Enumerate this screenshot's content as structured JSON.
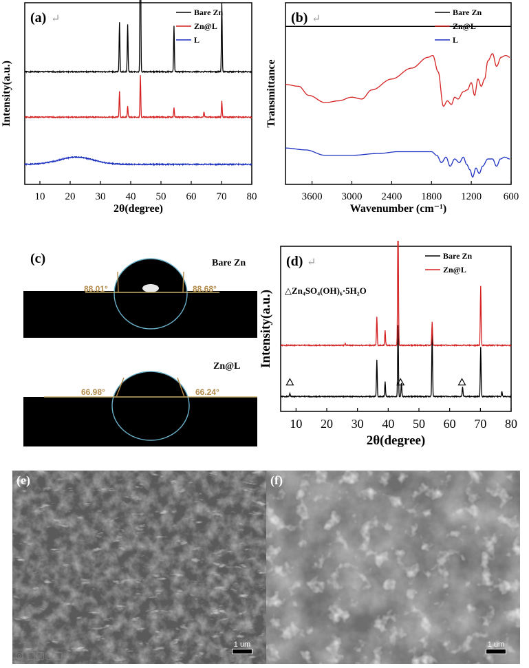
{
  "chart_data": [
    {
      "id": "a",
      "panel_label": "(a)",
      "type": "line",
      "xlabel": "2θ(degree)",
      "ylabel": "Intensity(a.u.)",
      "xlim": [
        5,
        80
      ],
      "xticks": [
        10,
        20,
        30,
        40,
        50,
        60,
        70,
        80
      ],
      "series": [
        {
          "name": "Bare Zn",
          "color": "#000000",
          "baseline": 0.62,
          "peaks": [
            [
              36.3,
              0.27
            ],
            [
              39.0,
              0.26
            ],
            [
              43.2,
              0.97
            ],
            [
              54.3,
              0.25
            ],
            [
              70.1,
              0.38
            ]
          ]
        },
        {
          "name": "Zn@L",
          "color": "#d42020",
          "baseline": 0.37,
          "peaks": [
            [
              36.3,
              0.14
            ],
            [
              39.0,
              0.06
            ],
            [
              43.2,
              0.23
            ],
            [
              54.3,
              0.05
            ],
            [
              64.2,
              0.03
            ],
            [
              70.1,
              0.09
            ]
          ]
        },
        {
          "name": "L",
          "color": "#1a2fbf",
          "baseline": 0.11,
          "hump": [
            22,
            0.04
          ]
        }
      ]
    },
    {
      "id": "b",
      "panel_label": "(b)",
      "type": "line",
      "xlabel": "Wavenumber (cm⁻¹)",
      "ylabel": "Transmittance",
      "xlim": [
        4000,
        600
      ],
      "xticks": [
        3600,
        3000,
        2400,
        1800,
        1200,
        600
      ],
      "series": [
        {
          "name": "Bare Zn",
          "color": "#000000",
          "points": [
            [
              4000,
              0.87
            ],
            [
              3000,
              0.87
            ],
            [
              2000,
              0.87
            ],
            [
              600,
              0.87
            ]
          ]
        },
        {
          "name": "Zn@L",
          "color": "#d42020",
          "points": [
            [
              4000,
              0.55
            ],
            [
              3800,
              0.54
            ],
            [
              3650,
              0.49
            ],
            [
              3400,
              0.45
            ],
            [
              3200,
              0.46
            ],
            [
              3000,
              0.48
            ],
            [
              2850,
              0.47
            ],
            [
              2700,
              0.52
            ],
            [
              2400,
              0.58
            ],
            [
              2100,
              0.64
            ],
            [
              1850,
              0.7
            ],
            [
              1780,
              0.71
            ],
            [
              1700,
              0.62
            ],
            [
              1620,
              0.43
            ],
            [
              1560,
              0.46
            ],
            [
              1500,
              0.44
            ],
            [
              1450,
              0.48
            ],
            [
              1400,
              0.47
            ],
            [
              1320,
              0.51
            ],
            [
              1260,
              0.52
            ],
            [
              1200,
              0.56
            ],
            [
              1150,
              0.49
            ],
            [
              1100,
              0.58
            ],
            [
              1050,
              0.54
            ],
            [
              1000,
              0.58
            ],
            [
              950,
              0.68
            ],
            [
              880,
              0.72
            ],
            [
              820,
              0.65
            ],
            [
              750,
              0.7
            ],
            [
              680,
              0.71
            ],
            [
              620,
              0.7
            ]
          ]
        },
        {
          "name": "L",
          "color": "#1a2fbf",
          "points": [
            [
              4000,
              0.2
            ],
            [
              3700,
              0.19
            ],
            [
              3400,
              0.16
            ],
            [
              3000,
              0.16
            ],
            [
              2600,
              0.17
            ],
            [
              2300,
              0.18
            ],
            [
              2000,
              0.18
            ],
            [
              1800,
              0.18
            ],
            [
              1720,
              0.16
            ],
            [
              1650,
              0.12
            ],
            [
              1580,
              0.15
            ],
            [
              1520,
              0.1
            ],
            [
              1450,
              0.14
            ],
            [
              1380,
              0.12
            ],
            [
              1320,
              0.15
            ],
            [
              1270,
              0.11
            ],
            [
              1220,
              0.08
            ],
            [
              1180,
              0.04
            ],
            [
              1130,
              0.09
            ],
            [
              1080,
              0.06
            ],
            [
              1030,
              0.1
            ],
            [
              950,
              0.14
            ],
            [
              880,
              0.14
            ],
            [
              820,
              0.1
            ],
            [
              760,
              0.14
            ],
            [
              700,
              0.15
            ],
            [
              620,
              0.14
            ]
          ]
        }
      ]
    },
    {
      "id": "d",
      "panel_label": "(d)",
      "type": "line",
      "xlabel": "2θ(degree)",
      "ylabel": "Intensity(a.u.)",
      "xlim": [
        5,
        80
      ],
      "xticks": [
        10,
        20,
        30,
        40,
        50,
        60,
        70,
        80
      ],
      "annotation": "△Zn₄SO₄(OH)₆·5H₂O",
      "marker_positions": [
        8,
        44,
        64
      ],
      "series": [
        {
          "name": "Bare Zn",
          "color": "#000000",
          "baseline": 0.09,
          "peaks": [
            [
              8,
              0.02
            ],
            [
              36.3,
              0.22
            ],
            [
              39.0,
              0.09
            ],
            [
              43.2,
              0.43
            ],
            [
              44.3,
              0.08
            ],
            [
              54.3,
              0.38
            ],
            [
              64.2,
              0.06
            ],
            [
              70.1,
              0.3
            ],
            [
              77.0,
              0.03
            ]
          ]
        },
        {
          "name": "Zn@L",
          "color": "#d42020",
          "baseline": 0.4,
          "peaks": [
            [
              26,
              0.01
            ],
            [
              36.3,
              0.17
            ],
            [
              39.0,
              0.09
            ],
            [
              43.2,
              0.8
            ],
            [
              54.3,
              0.14
            ],
            [
              70.1,
              0.36
            ]
          ]
        }
      ]
    }
  ],
  "contact_angle": {
    "panel_label": "(c)",
    "bare": {
      "name": "Bare Zn",
      "left": "88.01°",
      "right": "88.68°"
    },
    "coated": {
      "name": "Zn@L",
      "left": "66.98°",
      "right": "66.24°"
    }
  },
  "sem": {
    "e": {
      "label": "(e)",
      "scale": "1 um"
    },
    "f": {
      "label": "(f)",
      "scale": "1 um"
    }
  }
}
